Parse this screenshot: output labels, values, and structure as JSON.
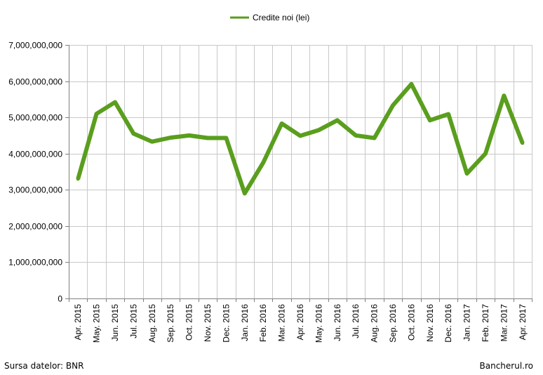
{
  "colors": {
    "series": "#5a9e1e",
    "grid": "#c8c8c8",
    "axis": "#808080",
    "background": "#ffffff"
  },
  "chart_data": {
    "type": "line",
    "title": "",
    "xlabel": "",
    "ylabel": "",
    "legend_placement": "top-center",
    "grid": true,
    "ylim": [
      0,
      7000000000
    ],
    "y_ticks": [
      0,
      1000000000,
      2000000000,
      3000000000,
      4000000000,
      5000000000,
      6000000000,
      7000000000
    ],
    "y_tick_labels": [
      "0",
      "1,000,000,000",
      "2,000,000,000",
      "3,000,000,000",
      "4,000,000,000",
      "5,000,000,000",
      "6,000,000,000",
      "7,000,000,000"
    ],
    "categories": [
      "Apr. 2015",
      "May. 2015",
      "Jun. 2015",
      "Jul. 2015",
      "Aug. 2015",
      "Sep. 2015",
      "Oct. 2015",
      "Nov. 2015",
      "Dec. 2015",
      "Jan. 2016",
      "Feb. 2016",
      "Mar. 2016",
      "Apr. 2016",
      "May. 2016",
      "Jun. 2016",
      "Jul. 2016",
      "Aug. 2016",
      "Sep. 2016",
      "Oct. 2016",
      "Nov. 2016",
      "Dec. 2016",
      "Jan. 2017",
      "Feb. 2017",
      "Mar. 2017",
      "Apr. 2017"
    ],
    "series": [
      {
        "name": "Credite noi (lei)",
        "values": [
          3300000000,
          5100000000,
          5420000000,
          4550000000,
          4330000000,
          4440000000,
          4500000000,
          4430000000,
          4430000000,
          2900000000,
          3750000000,
          4830000000,
          4490000000,
          4650000000,
          4920000000,
          4500000000,
          4430000000,
          5330000000,
          5920000000,
          4920000000,
          5090000000,
          3450000000,
          4000000000,
          5600000000,
          4290000000
        ]
      }
    ]
  },
  "footer": {
    "source": "Sursa datelor: BNR",
    "brand": "Bancherul.ro"
  }
}
